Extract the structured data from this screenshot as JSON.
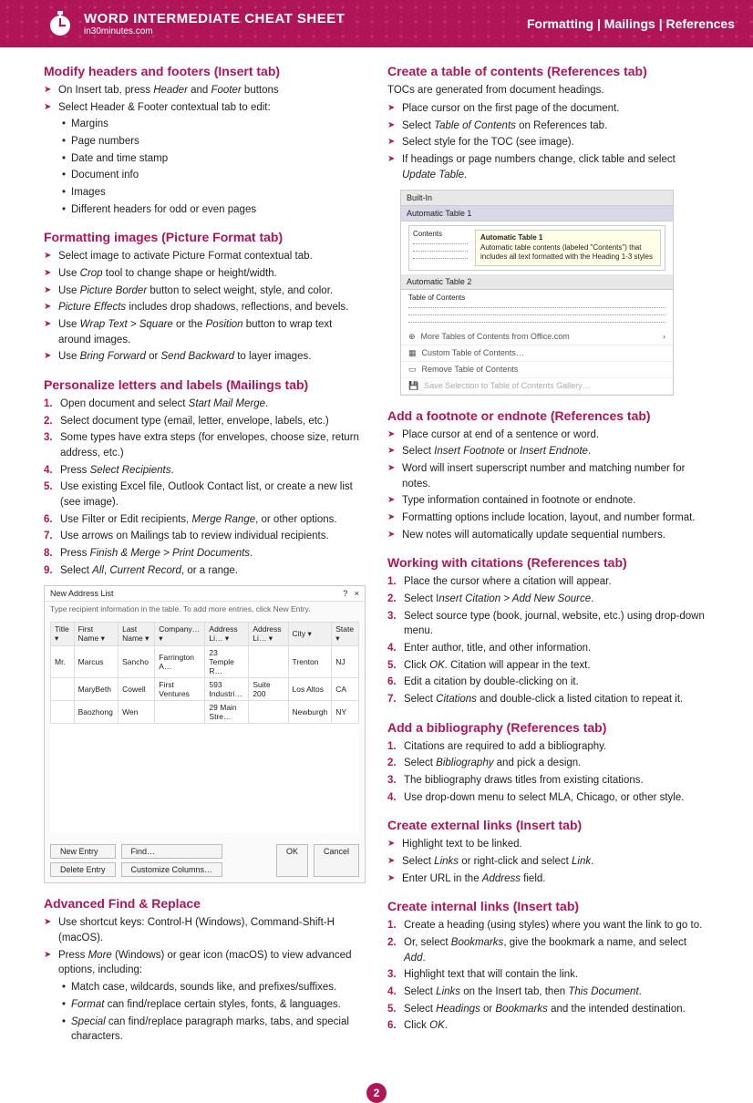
{
  "colors": {
    "brand": "#b01657",
    "text": "#222222",
    "border": "#cccccc",
    "header_bg": "#b01657"
  },
  "header": {
    "title": "WORD INTERMEDIATE CHEAT SHEET",
    "subtitle": "in30minutes.com",
    "right": "Formatting | Mailings | References"
  },
  "page_number": "2",
  "left": {
    "s1": {
      "title": "Modify headers and footers (Insert tab)",
      "items": [
        {
          "pre": "On Insert tab, press ",
          "it1": "Header",
          "mid": " and ",
          "it2": "Footer",
          "post": " buttons"
        },
        {
          "text": "Select Header & Footer contextual tab to edit:"
        }
      ],
      "sub": [
        "Margins",
        "Page numbers",
        "Date and time stamp",
        "Document info",
        "Images",
        "Different headers for odd or even pages"
      ]
    },
    "s2": {
      "title": "Formatting images (Picture Format tab)",
      "items": [
        "Select image to activate Picture Format contextual tab.",
        {
          "pre": "Use ",
          "it": "Crop",
          "post": " tool to change shape or height/width."
        },
        {
          "pre": "Use ",
          "it": "Picture Border",
          "post": " button to select weight, style, and color."
        },
        {
          "it": "Picture Effects",
          "post": " includes drop shadows, reflections, and bevels."
        },
        {
          "pre": "Use ",
          "it": "Wrap Text > Square",
          "mid": " or the ",
          "it2": "Position",
          "post": " button to wrap text around images."
        },
        {
          "pre": "Use ",
          "it": "Bring Forward",
          "mid": " or ",
          "it2": "Send Backward",
          "post": " to layer images."
        }
      ]
    },
    "s3": {
      "title": "Personalize letters and labels (Mailings tab)",
      "items": [
        {
          "pre": "Open document and select ",
          "it": "Start Mail Merge",
          "post": "."
        },
        "Select document type (email, letter, envelope, labels, etc.)",
        "Some types have extra steps (for envelopes, choose size, return address, etc.)",
        {
          "pre": "Press ",
          "it": "Select Recipients",
          "post": "."
        },
        "Use existing Excel file, Outlook Contact list, or create a new list (see image).",
        {
          "pre": "Use Filter or Edit recipients, ",
          "it": "Merge Range",
          "post": ", or other options."
        },
        "Use arrows on Mailings tab to review individual recipients.",
        {
          "pre": "Press ",
          "it": "Finish & Merge > Print Documents",
          "post": "."
        },
        {
          "pre": "Select ",
          "it": "All",
          "mid": ", ",
          "it2": "Current Record",
          "post": ", or a range."
        }
      ]
    },
    "dialog": {
      "title": "New Address List",
      "info": "Type recipient information in the table. To add more entries, click New Entry.",
      "cols": [
        "Title",
        "First Name",
        "Last Name",
        "Company…",
        "Address Li…",
        "Address Li…",
        "City",
        "State"
      ],
      "rows": [
        [
          "Mr.",
          "Marcus",
          "Sancho",
          "Farrington A…",
          "23 Temple R…",
          "",
          "Trenton",
          "NJ"
        ],
        [
          "",
          "MaryBeth",
          "Cowell",
          "First Ventures",
          "593 Industri…",
          "Suite 200",
          "Los Altos",
          "CA"
        ],
        [
          "",
          "Baozhong",
          "Wen",
          "",
          "29 Main Stre…",
          "",
          "Newburgh",
          "NY"
        ]
      ],
      "btns": {
        "new": "New Entry",
        "find": "Find…",
        "del": "Delete Entry",
        "cust": "Customize Columns…",
        "ok": "OK",
        "cancel": "Cancel"
      }
    },
    "s4": {
      "title": "Advanced Find & Replace",
      "items": [
        "Use shortcut keys: Control-H (Windows), Command-Shift-H (macOS).",
        {
          "pre": "Press ",
          "it": "More",
          "post": " (Windows) or gear icon (macOS) to view advanced options, including:"
        }
      ],
      "sub": [
        "Match case, wildcards, sounds like, and prefixes/suffixes.",
        {
          "it": "Format",
          "post": " can find/replace certain styles, fonts, & languages."
        },
        {
          "it": "Special",
          "post": " can find/replace paragraph marks, tabs, and special characters."
        }
      ]
    }
  },
  "right": {
    "s1": {
      "title": "Create a table of contents (References tab)",
      "intro": "TOCs are generated from document headings.",
      "items": [
        "Place cursor on the first page of the document.",
        {
          "pre": "Select ",
          "it": "Table of Contents",
          "post": " on References tab."
        },
        "Select style for the TOC (see image).",
        {
          "pre": "If headings or page numbers change, click table and select ",
          "it": "Update Table",
          "post": "."
        }
      ]
    },
    "toc": {
      "builtin": "Built-In",
      "auto1": "Automatic Table 1",
      "auto2": "Automatic Table 2",
      "contents": "Contents",
      "toc_label": "Table of Contents",
      "tip_title": "Automatic Table 1",
      "tip_body": "Automatic table contents (labeled \"Contents\") that includes all text formatted with the Heading 1-3 styles",
      "more": "More Tables of Contents from Office.com",
      "custom": "Custom Table of Contents…",
      "remove": "Remove Table of Contents",
      "save": "Save Selection to Table of Contents Gallery…"
    },
    "s2": {
      "title": "Add a footnote or endnote (References tab)",
      "items": [
        "Place cursor at end of a sentence or word.",
        {
          "pre": "Select ",
          "it": "Insert Footnote",
          "mid": " or ",
          "it2": "Insert Endnote",
          "post": "."
        },
        "Word will insert superscript number and matching number for notes.",
        "Type information contained in footnote or endnote.",
        "Formatting options include location, layout, and number format.",
        "New notes will automatically update sequential numbers."
      ]
    },
    "s3": {
      "title": "Working with citations (References tab)",
      "items": [
        "Place the cursor where a citation will appear.",
        {
          "pre": "Select I",
          "it": "nsert Citation > Add New Source",
          "post": "."
        },
        "Select source type (book, journal, website, etc.) using drop-down menu.",
        "Enter author, title, and other information.",
        {
          "pre": "Click ",
          "it": "OK",
          "post": ". Citation will appear in the text."
        },
        "Edit a citation by double-clicking on it.",
        {
          "pre": "Select ",
          "it": "Citations",
          "post": " and double-click a listed citation to repeat it."
        }
      ]
    },
    "s4": {
      "title": "Add a bibliography (References tab)",
      "items": [
        "Citations are required to add a bibliography.",
        {
          "pre": "Select ",
          "it": "Bibliography",
          "post": " and pick a design."
        },
        "The bibliography draws titles from existing citations.",
        "Use drop-down menu to select MLA, Chicago, or other style."
      ]
    },
    "s5": {
      "title": "Create external links (Insert tab)",
      "items": [
        "Highlight text to be linked.",
        {
          "pre": "Select ",
          "it": "Links",
          "mid": " or right-click and select ",
          "it2": "Link",
          "post": "."
        },
        {
          "pre": "Enter URL in the ",
          "it": "Address",
          "post": " field."
        }
      ]
    },
    "s6": {
      "title": "Create internal links (Insert tab)",
      "items": [
        "Create a heading (using styles) where you want the link to go to.",
        {
          "pre": "Or, select ",
          "it": "Bookmarks",
          "mid": ", give the bookmark a name, and select ",
          "it2": "Add",
          "post": "."
        },
        "Highlight text that will contain the link.",
        {
          "pre": "Select ",
          "it": "Links",
          "mid": " on the Insert tab, then ",
          "it2": "This Document",
          "post": "."
        },
        {
          "pre": "Select ",
          "it": "Headings",
          "mid": " or ",
          "it2": "Bookmarks",
          "post": " and the intended destination."
        },
        {
          "pre": "Click ",
          "it": "OK",
          "post": "."
        }
      ]
    }
  }
}
